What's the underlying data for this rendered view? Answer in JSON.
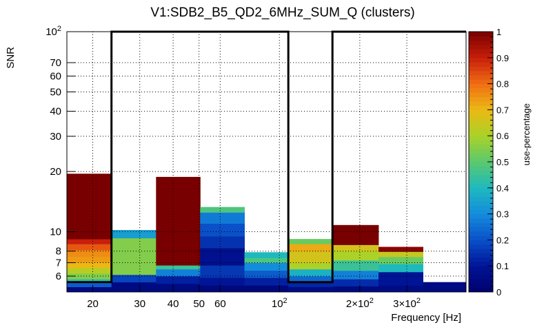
{
  "chart_data": {
    "type": "heatmap",
    "title": "V1:SDB2_B5_QD2_6MHz_SUM_Q (clusters)",
    "xlabel": "Frequency [Hz]",
    "ylabel": "SNR",
    "zlabel": "use-percentage",
    "x_scale": "log",
    "y_scale": "log",
    "xlim": [
      16,
      500
    ],
    "ylim": [
      5,
      100
    ],
    "zlim": [
      0,
      1
    ],
    "grid": true,
    "x_ticks": [
      {
        "value": 20,
        "label": "20"
      },
      {
        "value": 30,
        "label": "30"
      },
      {
        "value": 40,
        "label": "40"
      },
      {
        "value": 50,
        "label": "50"
      },
      {
        "value": 60,
        "label": "60"
      },
      {
        "value": 100,
        "label": "10²"
      },
      {
        "value": 200,
        "label": "2×10²"
      },
      {
        "value": 300,
        "label": "3×10²"
      }
    ],
    "y_ticks": [
      {
        "value": 6,
        "label": "6"
      },
      {
        "value": 7,
        "label": "7"
      },
      {
        "value": 8,
        "label": "8"
      },
      {
        "value": 10,
        "label": "10"
      },
      {
        "value": 20,
        "label": "20"
      },
      {
        "value": 30,
        "label": "30"
      },
      {
        "value": 40,
        "label": "40"
      },
      {
        "value": 50,
        "label": "50"
      },
      {
        "value": 60,
        "label": "60"
      },
      {
        "value": 70,
        "label": "70"
      },
      {
        "value": 100,
        "label": "10²"
      }
    ],
    "z_ticks": [
      {
        "value": 0,
        "label": "0"
      },
      {
        "value": 0.1,
        "label": "0.1"
      },
      {
        "value": 0.2,
        "label": "0.2"
      },
      {
        "value": 0.3,
        "label": "0.3"
      },
      {
        "value": 0.4,
        "label": "0.4"
      },
      {
        "value": 0.5,
        "label": "0.5"
      },
      {
        "value": 0.6,
        "label": "0.6"
      },
      {
        "value": 0.7,
        "label": "0.7"
      },
      {
        "value": 0.8,
        "label": "0.8"
      },
      {
        "value": 0.9,
        "label": "0.9"
      },
      {
        "value": 1,
        "label": "1"
      }
    ],
    "columns": [
      {
        "x0": 16,
        "x1": 23.5,
        "top": 19.5,
        "cells": [
          {
            "y0": 5,
            "y1": 5.3,
            "z": 0.05
          },
          {
            "y0": 5.3,
            "y1": 5.55,
            "z": 0.22
          },
          {
            "y0": 5.55,
            "y1": 5.8,
            "z": 0.42
          },
          {
            "y0": 5.8,
            "y1": 6.2,
            "z": 0.55
          },
          {
            "y0": 6.2,
            "y1": 6.6,
            "z": 0.62
          },
          {
            "y0": 6.6,
            "y1": 7.0,
            "z": 0.7
          },
          {
            "y0": 7.0,
            "y1": 7.5,
            "z": 0.74
          },
          {
            "y0": 7.5,
            "y1": 8.1,
            "z": 0.76
          },
          {
            "y0": 8.1,
            "y1": 8.7,
            "z": 0.83
          },
          {
            "y0": 8.7,
            "y1": 9.2,
            "z": 0.9
          },
          {
            "y0": 9.2,
            "y1": 19.5,
            "z": 1.0
          }
        ]
      },
      {
        "x0": 23.5,
        "x1": 34.5,
        "top": 10.2,
        "cells": [
          {
            "y0": 5,
            "y1": 5.6,
            "z": 0.05
          },
          {
            "y0": 5.6,
            "y1": 6.1,
            "z": 0.18
          },
          {
            "y0": 6.1,
            "y1": 9.3,
            "z": 0.55
          },
          {
            "y0": 9.3,
            "y1": 10.2,
            "z": 0.34
          }
        ]
      },
      {
        "x0": 34.5,
        "x1": 50.5,
        "top": 18.8,
        "cells": [
          {
            "y0": 5,
            "y1": 5.5,
            "z": 0.05
          },
          {
            "y0": 5.5,
            "y1": 6.0,
            "z": 0.12
          },
          {
            "y0": 6.0,
            "y1": 6.5,
            "z": 0.28
          },
          {
            "y0": 6.5,
            "y1": 6.8,
            "z": 0.45
          },
          {
            "y0": 6.8,
            "y1": 18.8,
            "z": 1.0
          }
        ]
      },
      {
        "x0": 50.5,
        "x1": 74,
        "top": 13.3,
        "cells": [
          {
            "y0": 5,
            "y1": 5.4,
            "z": 0.04
          },
          {
            "y0": 5.4,
            "y1": 5.9,
            "z": 0.1
          },
          {
            "y0": 5.9,
            "y1": 6.8,
            "z": 0.16
          },
          {
            "y0": 6.8,
            "y1": 8.3,
            "z": 0.08
          },
          {
            "y0": 8.3,
            "y1": 9.5,
            "z": 0.15
          },
          {
            "y0": 9.5,
            "y1": 11.0,
            "z": 0.2
          },
          {
            "y0": 11.0,
            "y1": 12.5,
            "z": 0.27
          },
          {
            "y0": 12.5,
            "y1": 13.3,
            "z": 0.48
          }
        ]
      },
      {
        "x0": 74,
        "x1": 108,
        "top": 7.9,
        "cells": [
          {
            "y0": 5,
            "y1": 5.4,
            "z": 0.04
          },
          {
            "y0": 5.4,
            "y1": 5.9,
            "z": 0.12
          },
          {
            "y0": 5.9,
            "y1": 6.4,
            "z": 0.22
          },
          {
            "y0": 6.4,
            "y1": 7.0,
            "z": 0.3
          },
          {
            "y0": 7.0,
            "y1": 7.4,
            "z": 0.48
          },
          {
            "y0": 7.4,
            "y1": 7.9,
            "z": 0.4
          }
        ]
      },
      {
        "x0": 108,
        "x1": 158,
        "top": 9.2,
        "cells": [
          {
            "y0": 5,
            "y1": 5.3,
            "z": 0.06
          },
          {
            "y0": 5.3,
            "y1": 5.6,
            "z": 0.13
          },
          {
            "y0": 5.6,
            "y1": 6.0,
            "z": 0.24
          },
          {
            "y0": 6.0,
            "y1": 6.5,
            "z": 0.38
          },
          {
            "y0": 6.5,
            "y1": 7.0,
            "z": 0.6
          },
          {
            "y0": 7.0,
            "y1": 8.0,
            "z": 0.66
          },
          {
            "y0": 8.0,
            "y1": 8.7,
            "z": 0.72
          },
          {
            "y0": 8.7,
            "y1": 9.2,
            "z": 0.52
          }
        ]
      },
      {
        "x0": 158,
        "x1": 235,
        "top": 10.8,
        "cells": [
          {
            "y0": 5,
            "y1": 5.35,
            "z": 0.05
          },
          {
            "y0": 5.35,
            "y1": 5.8,
            "z": 0.14
          },
          {
            "y0": 5.8,
            "y1": 6.4,
            "z": 0.28
          },
          {
            "y0": 6.4,
            "y1": 7.2,
            "z": 0.45
          },
          {
            "y0": 7.2,
            "y1": 8.0,
            "z": 0.6
          },
          {
            "y0": 8.0,
            "y1": 8.6,
            "z": 0.66
          },
          {
            "y0": 8.6,
            "y1": 10.8,
            "z": 1.0
          }
        ]
      },
      {
        "x0": 235,
        "x1": 345,
        "top": 8.4,
        "cells": [
          {
            "y0": 5,
            "y1": 5.4,
            "z": 0.06
          },
          {
            "y0": 5.4,
            "y1": 6.3,
            "z": 0.1
          },
          {
            "y0": 6.3,
            "y1": 6.9,
            "z": 0.4
          },
          {
            "y0": 6.9,
            "y1": 7.5,
            "z": 0.52
          },
          {
            "y0": 7.5,
            "y1": 7.95,
            "z": 0.64
          },
          {
            "y0": 7.95,
            "y1": 8.4,
            "z": 0.98
          }
        ]
      },
      {
        "x0": 345,
        "x1": 500,
        "top": 5.6,
        "cells": [
          {
            "y0": 5,
            "y1": 5.6,
            "z": 0.05
          }
        ]
      }
    ],
    "outline_frequencies": [
      23.5,
      108,
      158,
      500
    ],
    "outline_levels": {
      "high": 100,
      "low": 5.6
    }
  }
}
